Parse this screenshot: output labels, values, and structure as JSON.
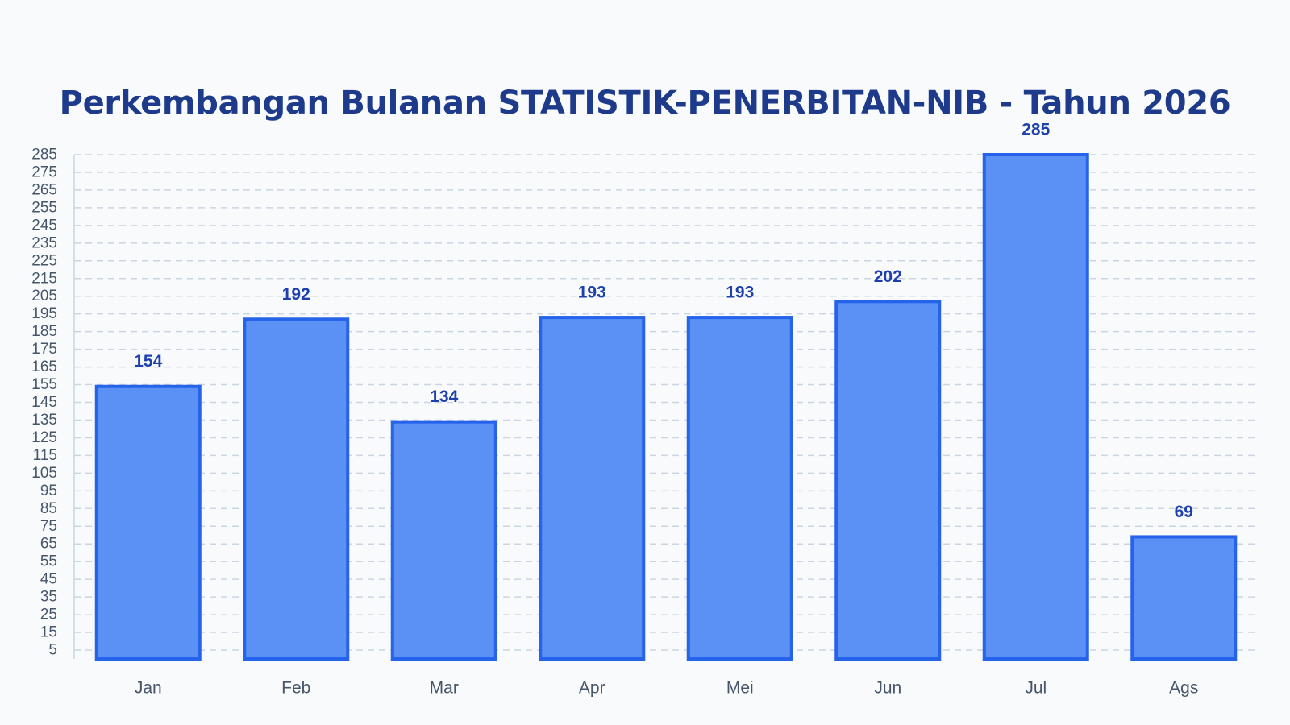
{
  "chart_data": {
    "type": "bar",
    "title": "Perkembangan Bulanan STATISTIK-PENERBITAN-NIB - Tahun 2026",
    "categories": [
      "Jan",
      "Feb",
      "Mar",
      "Apr",
      "Mei",
      "Jun",
      "Jul",
      "Ags"
    ],
    "values": [
      154,
      192,
      134,
      193,
      193,
      202,
      285,
      69
    ],
    "xlabel": "",
    "ylabel": "",
    "ylim": [
      0,
      285
    ],
    "yticks": [
      5,
      15,
      25,
      35,
      45,
      55,
      65,
      75,
      85,
      95,
      105,
      115,
      125,
      135,
      145,
      155,
      165,
      175,
      185,
      195,
      205,
      215,
      225,
      235,
      245,
      255,
      265,
      275,
      285
    ],
    "grid": true,
    "legend": "none",
    "colors": {
      "bar_fill": "#5b91f5",
      "bar_stroke": "#2563eb",
      "value_label": "#1e40af",
      "grid": "#cbd5e1"
    }
  }
}
